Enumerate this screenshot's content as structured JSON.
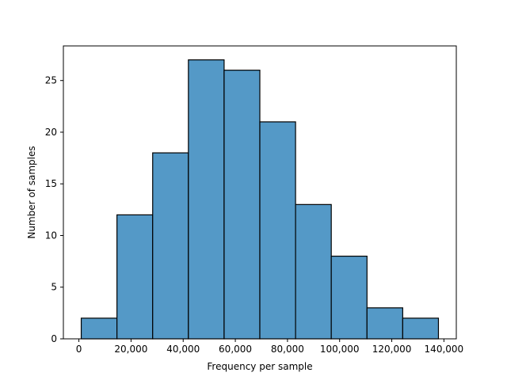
{
  "chart_data": {
    "type": "bar",
    "subtype": "histogram",
    "title": "",
    "xlabel": "Frequency per sample",
    "ylabel": "Number of samples",
    "bin_edges": [
      900,
      14600,
      28300,
      42000,
      55700,
      69400,
      83100,
      96800,
      110500,
      124200,
      137900
    ],
    "counts": [
      2,
      12,
      18,
      27,
      26,
      21,
      13,
      8,
      3,
      2
    ],
    "xlim": [
      -5950,
      144750
    ],
    "ylim": [
      0,
      28.35
    ],
    "xticks": [
      0,
      20000,
      40000,
      60000,
      80000,
      100000,
      120000,
      140000
    ],
    "xtick_labels": [
      "0",
      "20,000",
      "40,000",
      "60,000",
      "80,000",
      "100,000",
      "120,000",
      "140,000"
    ],
    "yticks": [
      0,
      5,
      10,
      15,
      20,
      25
    ],
    "ytick_labels": [
      "0",
      "5",
      "10",
      "15",
      "20",
      "25"
    ],
    "grid": false,
    "legend": "none",
    "bar_color": "#5499c7",
    "edge_color": "#000000"
  }
}
